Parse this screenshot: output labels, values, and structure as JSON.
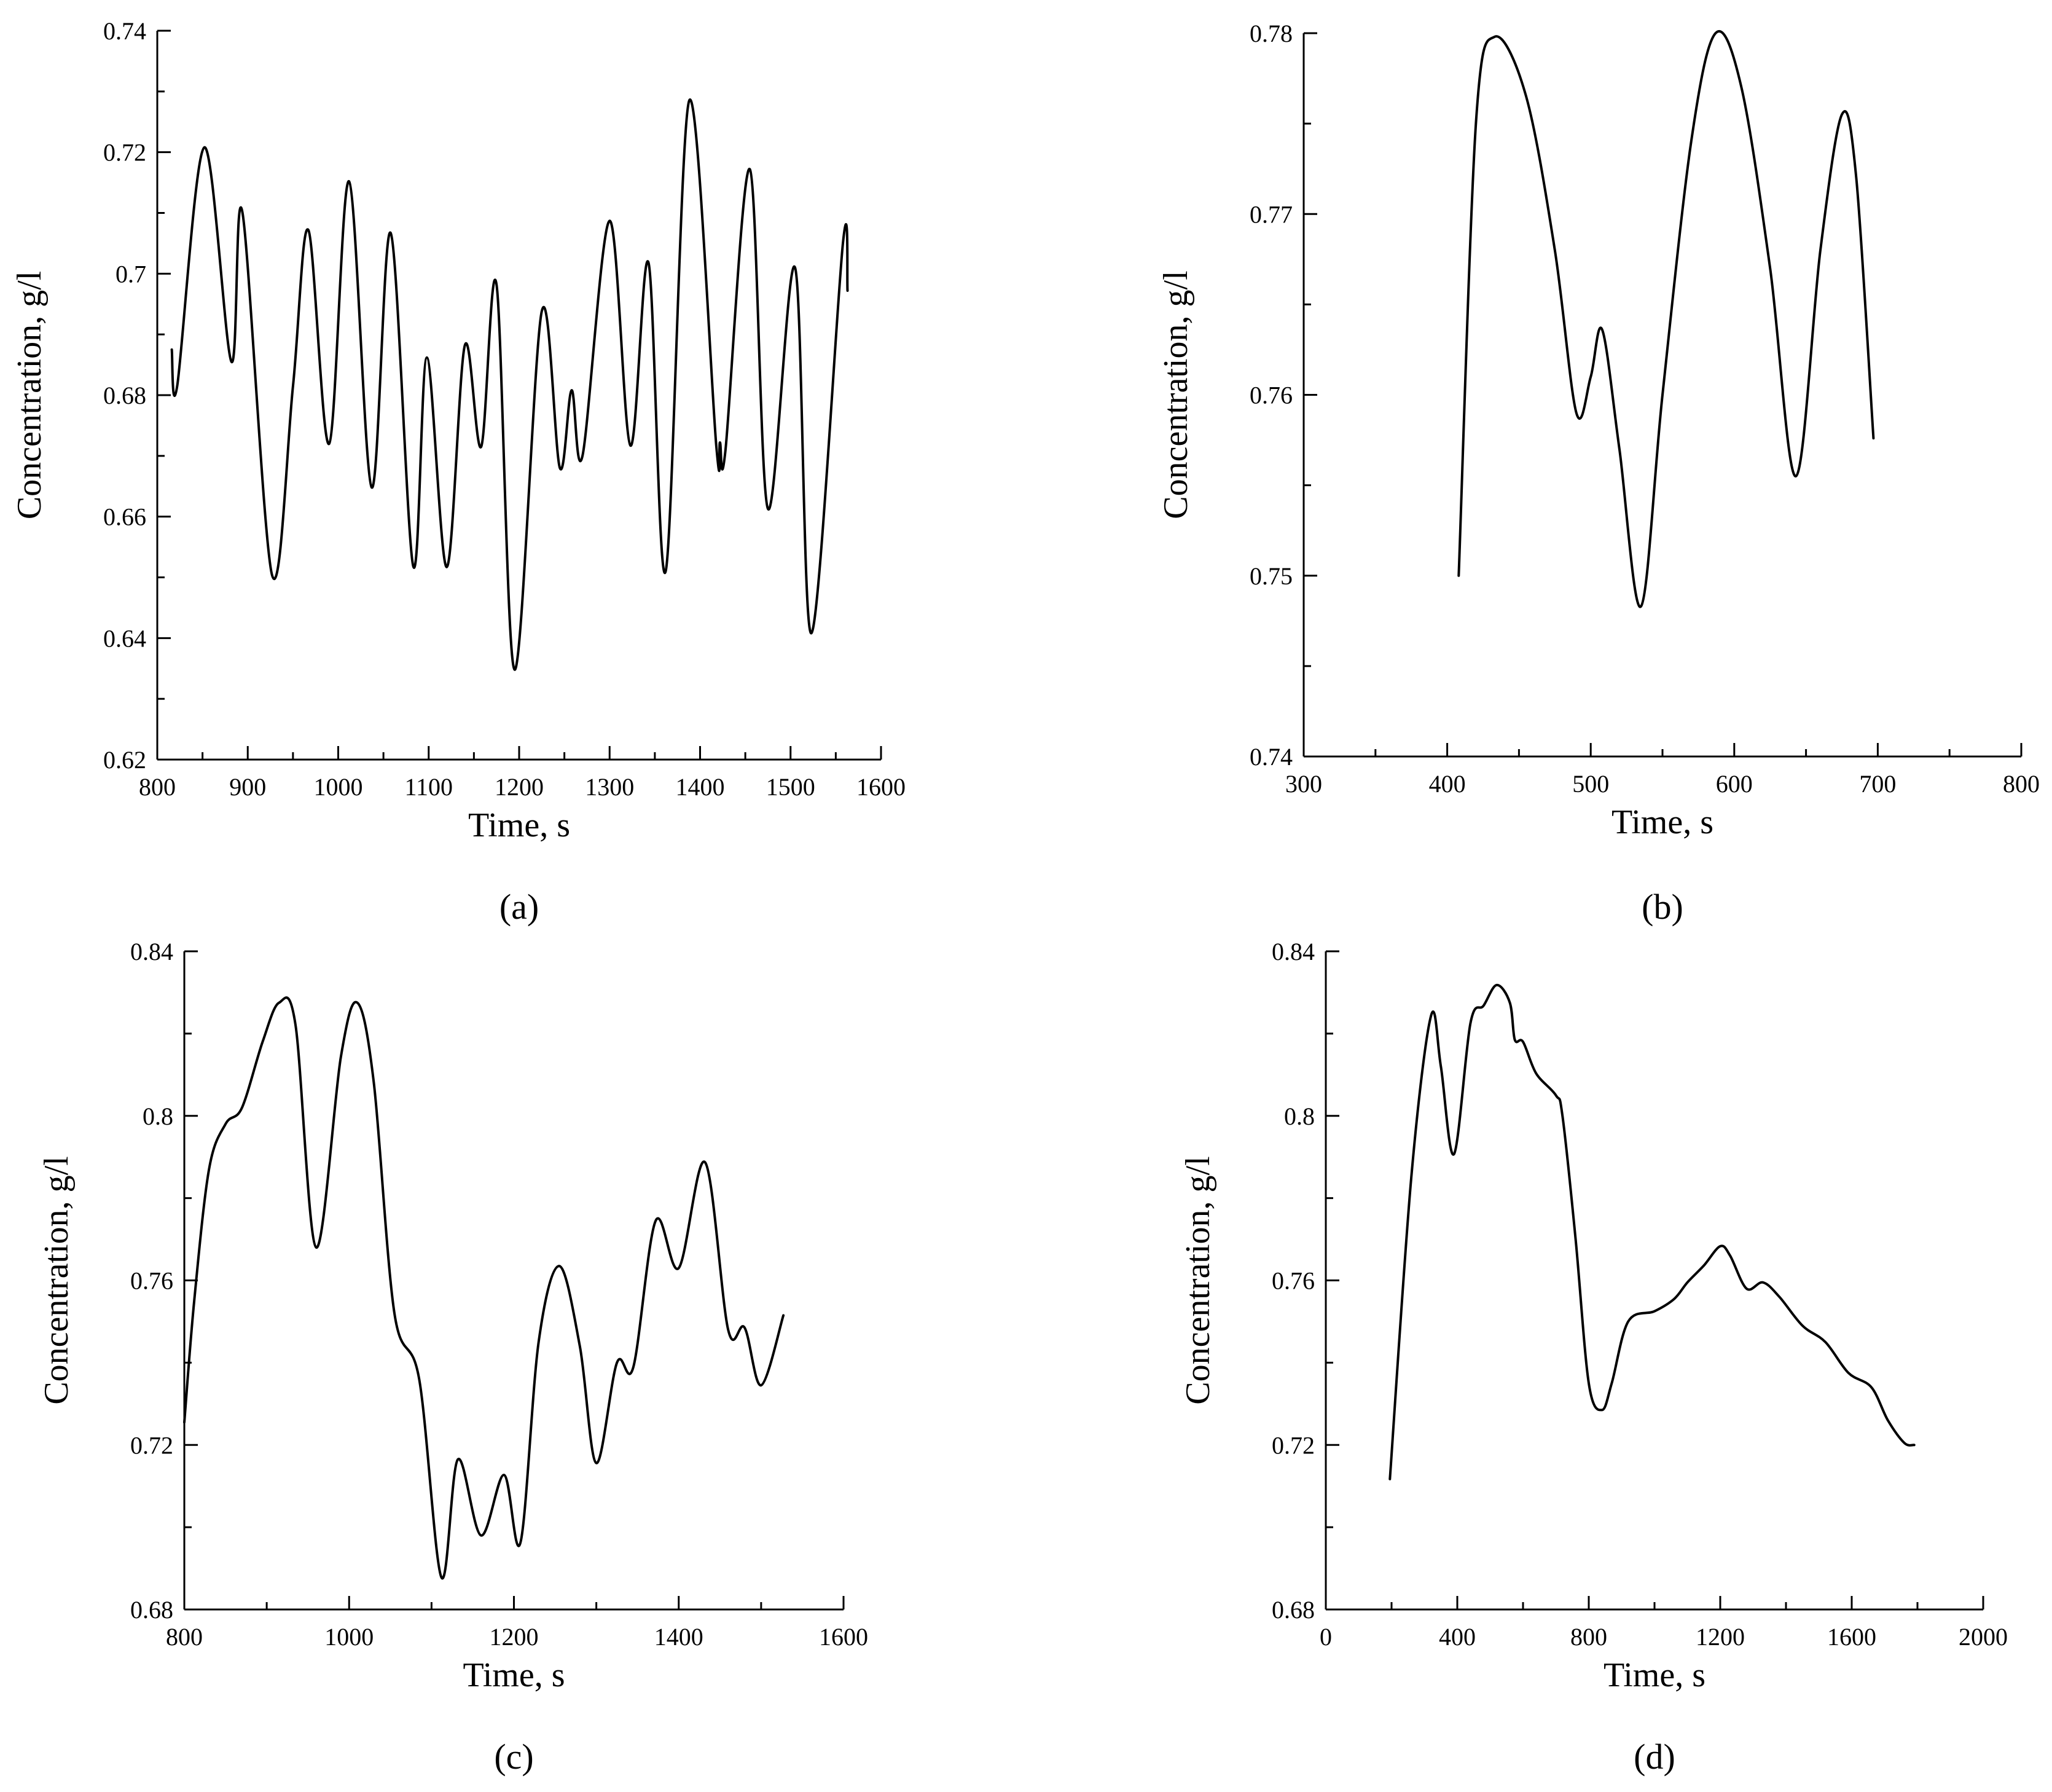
{
  "chart_data": [
    {
      "id": "a",
      "type": "line",
      "panel_label": "(a)",
      "xlabel": "Time, s",
      "ylabel": "Concentration, g/l",
      "xlim": [
        800,
        1600
      ],
      "ylim": [
        0.62,
        0.74
      ],
      "xticks": [
        800,
        900,
        1000,
        1100,
        1200,
        1300,
        1400,
        1500,
        1600
      ],
      "xtick_labels": [
        "800",
        "900",
        "1000",
        "1100",
        "1200",
        "1300",
        "1400",
        "1500",
        "1600"
      ],
      "yticks": [
        0.62,
        0.64,
        0.66,
        0.68,
        0.7,
        0.72,
        0.74
      ],
      "ytick_labels": [
        "0.62",
        "0.64",
        "0.66",
        "0.68",
        "0.7",
        "0.72",
        "0.74"
      ],
      "grid": false,
      "series": [
        {
          "x": [
            816,
            822,
            852,
            882,
            894,
            927,
            950,
            967,
            990,
            1012,
            1037,
            1058,
            1083,
            1098,
            1120,
            1140,
            1158,
            1175,
            1195,
            1225,
            1245,
            1258,
            1270,
            1300,
            1323,
            1343,
            1362,
            1388,
            1418,
            1422,
            1428,
            1455,
            1475,
            1505,
            1523,
            1558,
            1563
          ],
          "y": [
            0.6875,
            0.6815,
            0.7208,
            0.6855,
            0.7102,
            0.6503,
            0.6815,
            0.7072,
            0.672,
            0.7152,
            0.6648,
            0.7067,
            0.6518,
            0.6862,
            0.6517,
            0.6882,
            0.6715,
            0.6982,
            0.6348,
            0.6938,
            0.668,
            0.6808,
            0.67,
            0.7087,
            0.6717,
            0.7018,
            0.651,
            0.7285,
            0.6715,
            0.6722,
            0.6708,
            0.7172,
            0.6613,
            0.701,
            0.6408,
            0.7052,
            0.6972
          ]
        }
      ]
    },
    {
      "id": "b",
      "type": "line",
      "panel_label": "(b)",
      "xlabel": "Time, s",
      "ylabel": "Concentration, g/l",
      "xlim": [
        300,
        800
      ],
      "ylim": [
        0.74,
        0.78
      ],
      "xticks": [
        300,
        400,
        500,
        600,
        700,
        800
      ],
      "xtick_labels": [
        "300",
        "400",
        "500",
        "600",
        "700",
        "800"
      ],
      "yticks": [
        0.74,
        0.75,
        0.76,
        0.77,
        0.78
      ],
      "ytick_labels": [
        "0.74",
        "0.75",
        "0.76",
        "0.77",
        "0.78"
      ],
      "grid": false,
      "series": [
        {
          "x": [
            408,
            420,
            433,
            455,
            475,
            490,
            500,
            508,
            520,
            535,
            550,
            570,
            587,
            605,
            625,
            643,
            660,
            675,
            685,
            697
          ],
          "y": [
            0.75,
            0.775,
            0.7798,
            0.7765,
            0.768,
            0.759,
            0.761,
            0.7636,
            0.757,
            0.7483,
            0.76,
            0.774,
            0.78,
            0.777,
            0.767,
            0.7555,
            0.768,
            0.7755,
            0.772,
            0.7576
          ]
        }
      ]
    },
    {
      "id": "c",
      "type": "line",
      "panel_label": "(c)",
      "xlabel": "Time, s",
      "ylabel": "Concentration, g/l",
      "xlim": [
        800,
        1600
      ],
      "ylim": [
        0.68,
        0.84
      ],
      "xticks": [
        800,
        1000,
        1200,
        1400,
        1600
      ],
      "xtick_labels": [
        "800",
        "1000",
        "1200",
        "1400",
        "1600"
      ],
      "yticks": [
        0.68,
        0.72,
        0.76,
        0.8,
        0.84
      ],
      "ytick_labels": [
        "0.68",
        "0.72",
        "0.76",
        "0.8",
        "0.84"
      ],
      "grid": false,
      "series": [
        {
          "x": [
            800,
            812,
            830,
            850,
            870,
            895,
            915,
            935,
            960,
            990,
            1010,
            1030,
            1055,
            1085,
            1112,
            1132,
            1160,
            1188,
            1208,
            1230,
            1255,
            1280,
            1300,
            1325,
            1345,
            1372,
            1400,
            1432,
            1460,
            1480,
            1500,
            1527
          ],
          "y": [
            0.7255,
            0.755,
            0.787,
            0.798,
            0.802,
            0.818,
            0.8275,
            0.822,
            0.768,
            0.8143,
            0.8275,
            0.808,
            0.752,
            0.736,
            0.6878,
            0.7165,
            0.698,
            0.7127,
            0.6963,
            0.745,
            0.7635,
            0.744,
            0.7156,
            0.74,
            0.739,
            0.7745,
            0.763,
            0.7887,
            0.748,
            0.7485,
            0.7345,
            0.7515
          ]
        }
      ]
    },
    {
      "id": "d",
      "type": "line",
      "panel_label": "(d)",
      "xlabel": "Time, s",
      "ylabel": "Concentration, g/l",
      "xlim": [
        0,
        2000
      ],
      "ylim": [
        0.68,
        0.84
      ],
      "xticks": [
        0,
        400,
        800,
        1200,
        1600,
        2000
      ],
      "xtick_labels": [
        "0",
        "400",
        "800",
        "1200",
        "1600",
        "2000"
      ],
      "yticks": [
        0.68,
        0.72,
        0.76,
        0.8,
        0.84
      ],
      "ytick_labels": [
        "0.68",
        "0.72",
        "0.76",
        "0.8",
        "0.84"
      ],
      "grid": false,
      "series": [
        {
          "x": [
            195,
            260,
            320,
            350,
            390,
            440,
            480,
            520,
            560,
            575,
            600,
            640,
            700,
            720,
            760,
            800,
            840,
            870,
            920,
            1000,
            1060,
            1100,
            1150,
            1200,
            1230,
            1280,
            1330,
            1380,
            1450,
            1520,
            1590,
            1660,
            1710,
            1760,
            1790
          ],
          "y": [
            0.7117,
            0.785,
            0.8243,
            0.812,
            0.7907,
            0.8225,
            0.8268,
            0.8318,
            0.8275,
            0.8185,
            0.818,
            0.8103,
            0.805,
            0.8,
            0.77,
            0.735,
            0.7285,
            0.735,
            0.75,
            0.7525,
            0.7555,
            0.7595,
            0.7636,
            0.7683,
            0.766,
            0.758,
            0.7595,
            0.756,
            0.749,
            0.745,
            0.7375,
            0.734,
            0.726,
            0.7205,
            0.72
          ]
        }
      ]
    }
  ]
}
